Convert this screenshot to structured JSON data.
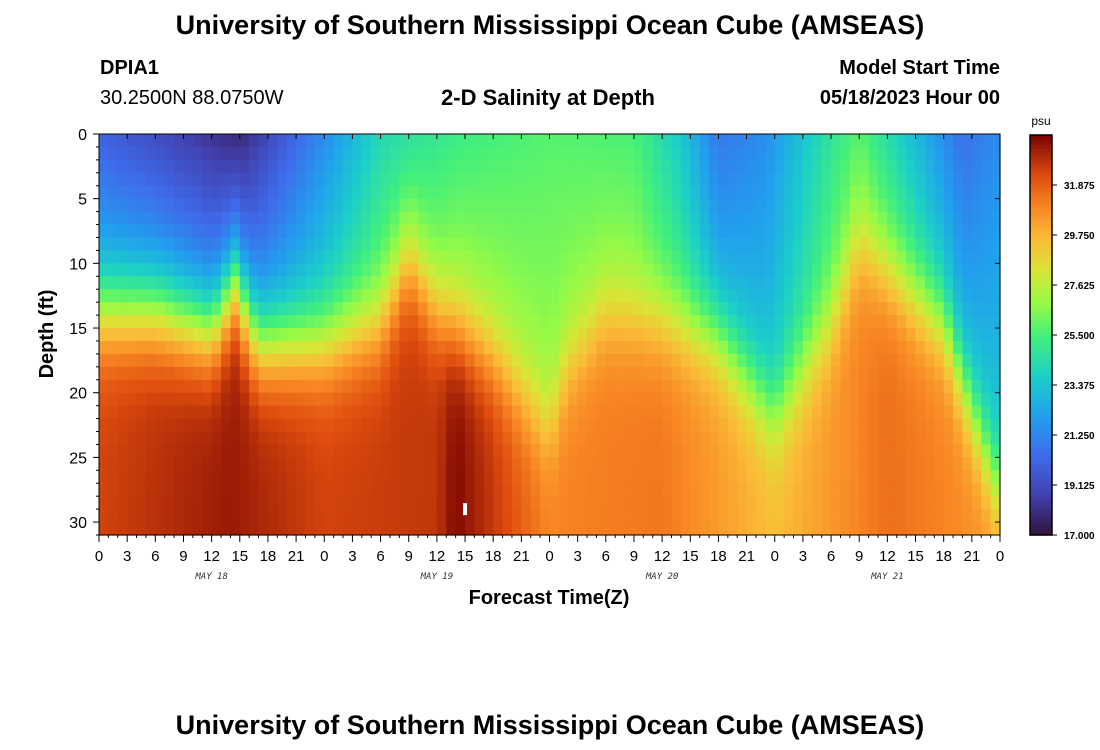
{
  "header": {
    "title": "University of Southern Mississippi Ocean Cube (AMSEAS)",
    "station_id": "DPIA1",
    "station_coords": "30.2500N  88.0750W",
    "plot_name": "2-D Salinity at Depth",
    "model_label": "Model Start Time",
    "model_time": "05/18/2023 Hour 00"
  },
  "footer": {
    "title": "University of Southern Mississippi Ocean Cube (AMSEAS)"
  },
  "chart_data": {
    "type": "heatmap",
    "title": "2-D Salinity at Depth",
    "xlabel": "Forecast Time(Z)",
    "ylabel": "Depth (ft)",
    "xlim": [
      0,
      96
    ],
    "ylim": [
      0,
      31
    ],
    "x_tick_labels": [
      "0",
      "3",
      "6",
      "9",
      "12",
      "15",
      "18",
      "21",
      "0",
      "3",
      "6",
      "9",
      "12",
      "15",
      "18",
      "21",
      "0",
      "3",
      "6",
      "9",
      "12",
      "15",
      "18",
      "21",
      "0",
      "3",
      "6",
      "9",
      "12",
      "15",
      "18",
      "21",
      "0"
    ],
    "date_labels": [
      {
        "label": "MAY 18",
        "hour": 12
      },
      {
        "label": "MAY 19",
        "hour": 36
      },
      {
        "label": "MAY 20",
        "hour": 60
      },
      {
        "label": "MAY 21",
        "hour": 84
      }
    ],
    "y_ticks": [
      0,
      5,
      10,
      15,
      20,
      25,
      30
    ],
    "colorbar": {
      "unit": "psu",
      "min": 17.0,
      "max": 34.0,
      "tick_labels": [
        "31.875",
        "29.750",
        "27.625",
        "25.500",
        "23.375",
        "21.250",
        "19.125",
        "17.000"
      ],
      "tick_values": [
        31.875,
        29.75,
        27.625,
        25.5,
        23.375,
        21.25,
        19.125,
        17.0
      ]
    },
    "halocline_depth_by_hour": [
      {
        "hour": 0,
        "depth": 14
      },
      {
        "hour": 6,
        "depth": 14
      },
      {
        "hour": 12,
        "depth": 15.5
      },
      {
        "hour": 14.5,
        "depth": 12
      },
      {
        "hour": 17,
        "depth": 16.5
      },
      {
        "hour": 24,
        "depth": 16.5
      },
      {
        "hour": 30,
        "depth": 15
      },
      {
        "hour": 33,
        "depth": 10
      },
      {
        "hour": 36,
        "depth": 14
      },
      {
        "hour": 42,
        "depth": 17.5
      },
      {
        "hour": 48,
        "depth": 23
      },
      {
        "hour": 50,
        "depth": 18
      },
      {
        "hour": 54,
        "depth": 14
      },
      {
        "hour": 60,
        "depth": 14.5
      },
      {
        "hour": 66,
        "depth": 16
      },
      {
        "hour": 72,
        "depth": 22
      },
      {
        "hour": 78,
        "depth": 15
      },
      {
        "hour": 81,
        "depth": 9
      },
      {
        "hour": 84,
        "depth": 11
      },
      {
        "hour": 90,
        "depth": 15
      },
      {
        "hour": 96,
        "depth": 28
      }
    ],
    "surface_salinity_by_hour": [
      {
        "hour": 0,
        "value": 20.0
      },
      {
        "hour": 6,
        "value": 19.2
      },
      {
        "hour": 15,
        "value": 17.8
      },
      {
        "hour": 24,
        "value": 21.5
      },
      {
        "hour": 30,
        "value": 24.2
      },
      {
        "hour": 39,
        "value": 25.3
      },
      {
        "hour": 48,
        "value": 25.8
      },
      {
        "hour": 57,
        "value": 25.6
      },
      {
        "hour": 62,
        "value": 23.5
      },
      {
        "hour": 66,
        "value": 20.8
      },
      {
        "hour": 71,
        "value": 21.5
      },
      {
        "hour": 78,
        "value": 24.8
      },
      {
        "hour": 81,
        "value": 25.8
      },
      {
        "hour": 87,
        "value": 23.0
      },
      {
        "hour": 92,
        "value": 20.5
      },
      {
        "hour": 96,
        "value": 21.5
      }
    ],
    "bottom_salinity_by_hour": [
      {
        "hour": 0,
        "value": 32.5
      },
      {
        "hour": 14,
        "value": 33.5
      },
      {
        "hour": 24,
        "value": 32.5
      },
      {
        "hour": 36,
        "value": 32.8
      },
      {
        "hour": 38,
        "value": 33.9
      },
      {
        "hour": 48,
        "value": 31.0
      },
      {
        "hour": 60,
        "value": 31.3
      },
      {
        "hour": 72,
        "value": 29.5
      },
      {
        "hour": 84,
        "value": 31.5
      },
      {
        "hour": 96,
        "value": 30.5
      }
    ],
    "markers": [
      {
        "hour": 39,
        "depth": 29,
        "label": "station bottom marker"
      }
    ]
  }
}
